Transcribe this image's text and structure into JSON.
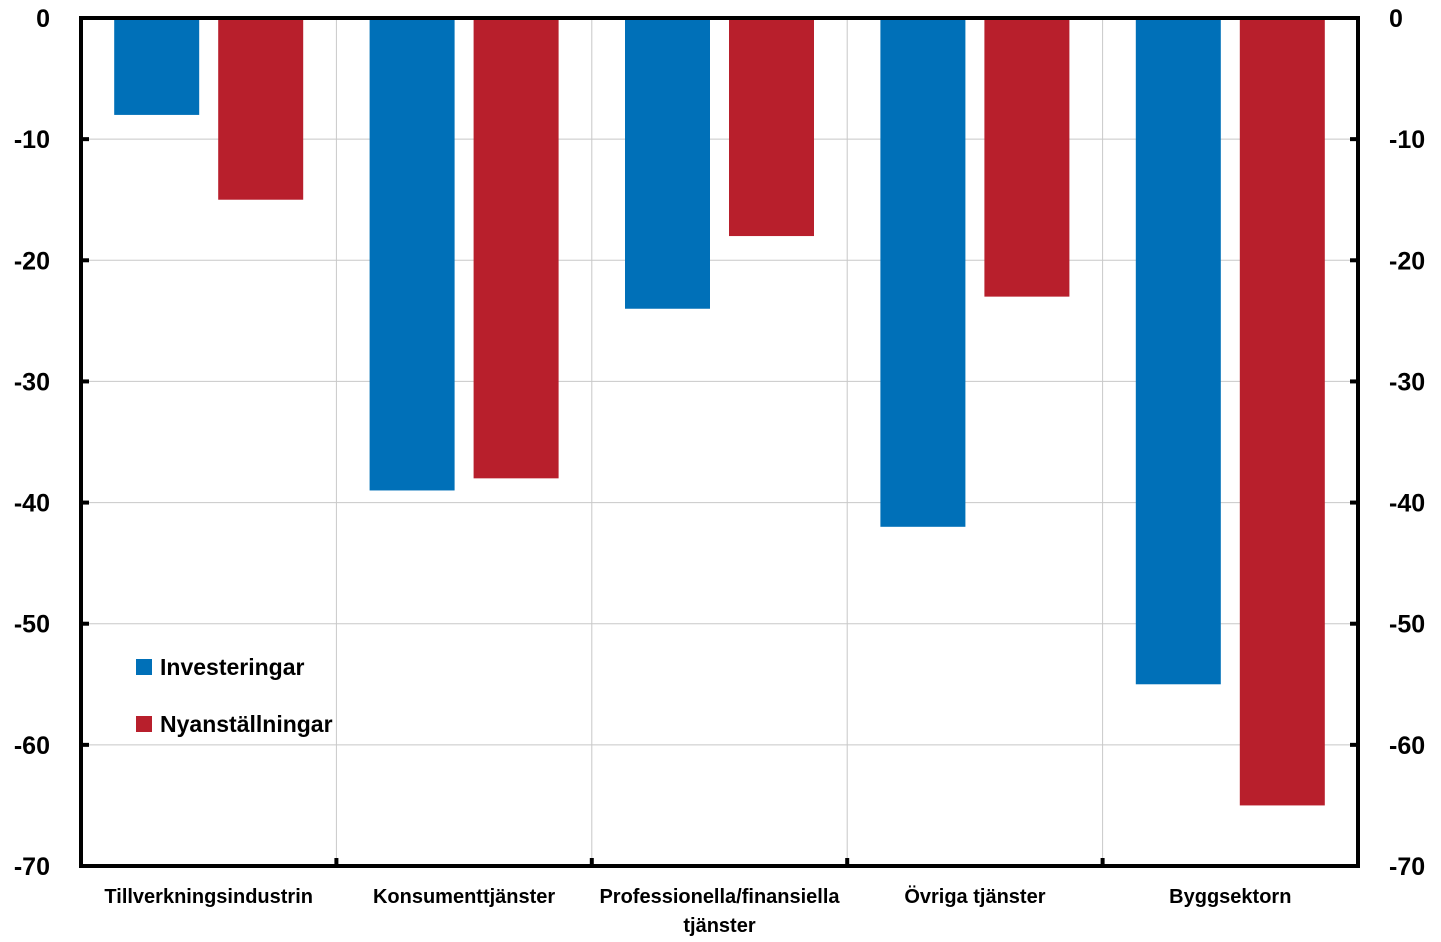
{
  "chart_data": {
    "type": "bar",
    "categories": [
      [
        "Tillverkningsindustrin"
      ],
      [
        "Konsumenttjänster"
      ],
      [
        "Professionella/finansiella",
        "tjänster"
      ],
      [
        "Övriga tjänster"
      ],
      [
        "Byggsektorn"
      ]
    ],
    "series": [
      {
        "name": "Investeringar",
        "color": "#0070B8",
        "values": [
          -8,
          -39,
          -24,
          -42,
          -55
        ]
      },
      {
        "name": "Nyanställningar",
        "color": "#B81F2C",
        "values": [
          -15,
          -38,
          -18,
          -23,
          -65
        ]
      }
    ],
    "ylim": [
      -70,
      0
    ],
    "yticks": [
      "0",
      "-10",
      "-20",
      "-30",
      "-40",
      "-50",
      "-60",
      "-70"
    ],
    "ytick_values": [
      0,
      -10,
      -20,
      -30,
      -40,
      -50,
      -60,
      -70
    ],
    "grid": true,
    "legend_position": "bottom-left",
    "title": "",
    "xlabel": "",
    "ylabel": ""
  }
}
